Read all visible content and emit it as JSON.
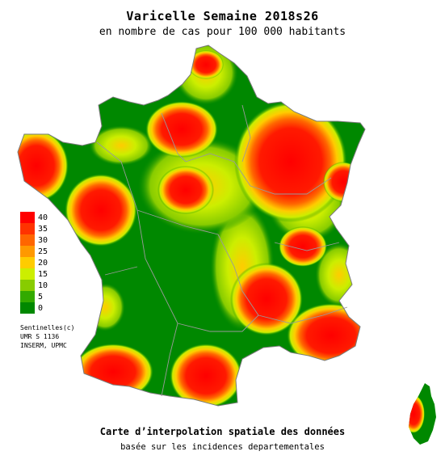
{
  "title": "Varicelle Semaine 2018s26",
  "subtitle": "en nombre de cas pour 100 000 habitants",
  "legend": {
    "ticks": [
      "40",
      "35",
      "30",
      "25",
      "20",
      "15",
      "10",
      "5",
      "0"
    ],
    "colors": [
      "#ff0000",
      "#ff3300",
      "#ff6600",
      "#ff9900",
      "#ffcc00",
      "#ccee00",
      "#88cc00",
      "#33aa00",
      "#008800"
    ]
  },
  "credits": [
    "Sentinelles(c)",
    "UMR S 1136",
    "INSERM, UPMC"
  ],
  "footer": {
    "line1": "Carte d’interpolation spatiale des données",
    "line2": "basée sur les incidences departementales"
  },
  "map_colors": {
    "low": "#008800",
    "mid": "#ccee00",
    "high": "#ff0000",
    "borders": "#9a9a9a"
  }
}
